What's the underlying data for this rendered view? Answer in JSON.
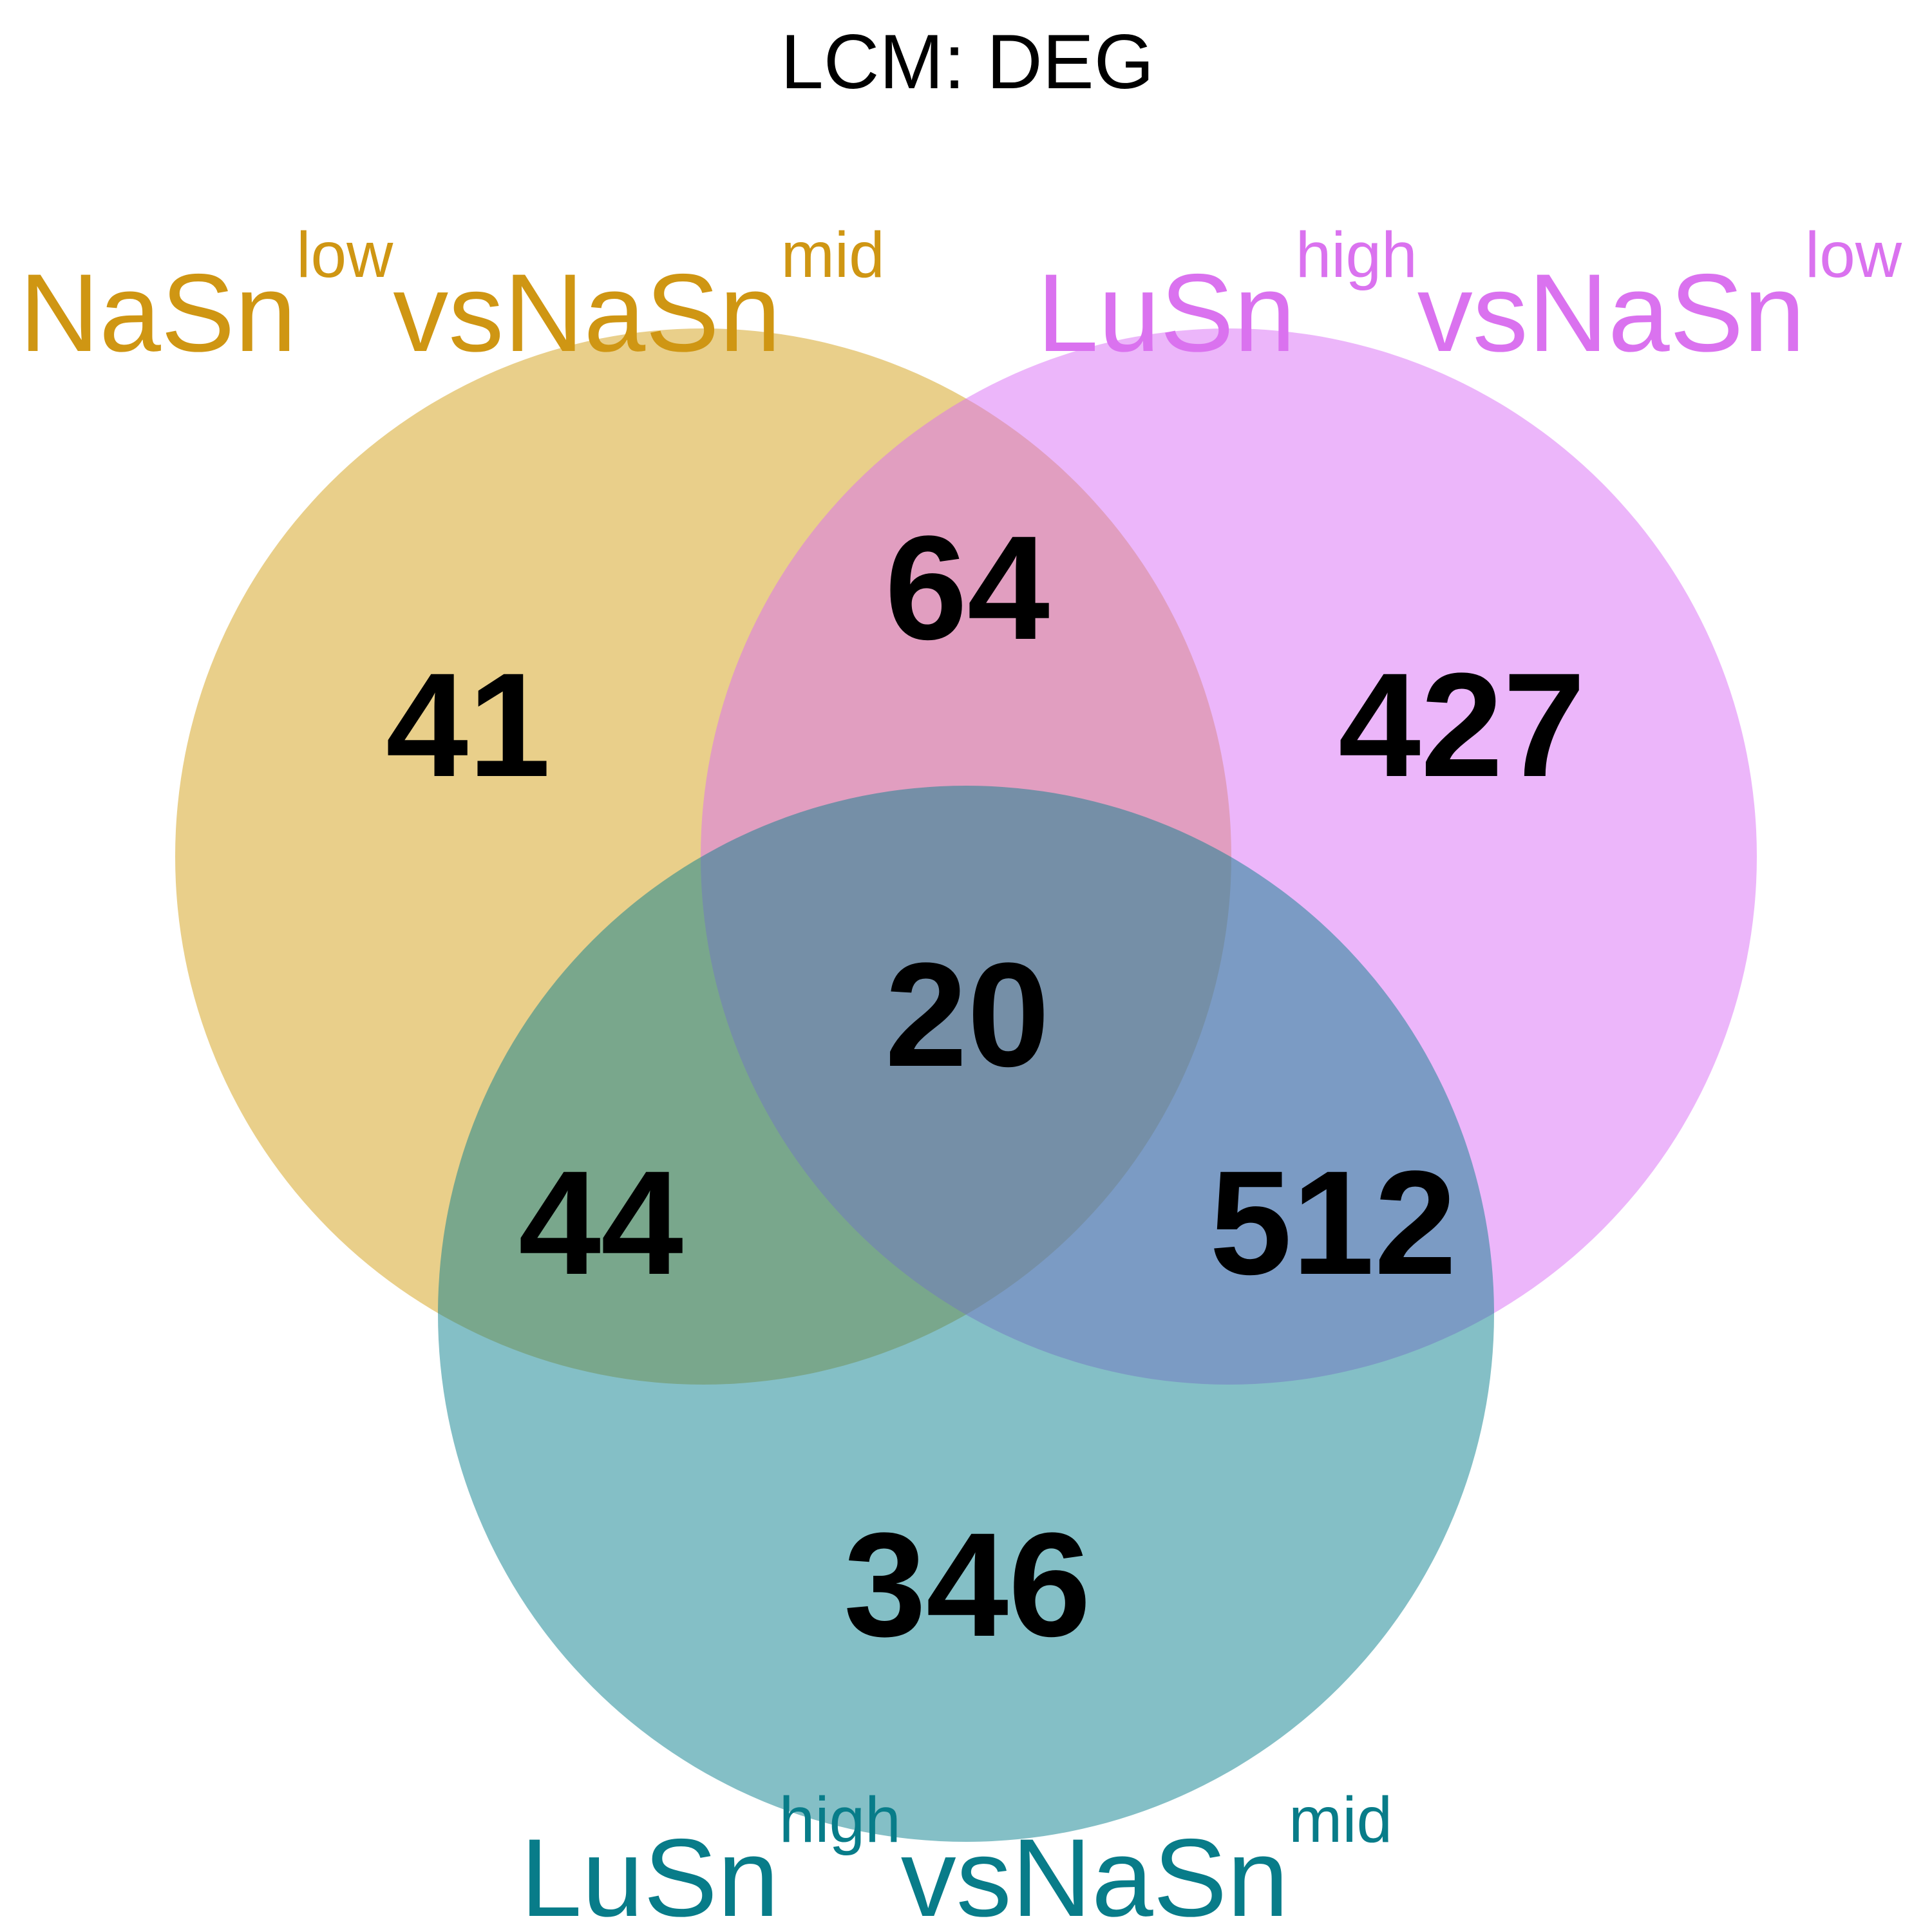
{
  "title": "LCM: DEG",
  "sets": {
    "A": {
      "label": {
        "main1": "NaSn",
        "sup1": "low",
        "main2": "vsNaSn",
        "sup2": "mid"
      },
      "fill": "#D4A015",
      "label_color": "#CF9613"
    },
    "B": {
      "label": {
        "main1": "LuSn",
        "sup1": "high",
        "main2": "vsNaSn",
        "sup2": "low"
      },
      "fill": "#DA6EF5",
      "label_color": "#DA72EF"
    },
    "C": {
      "label": {
        "main1": "LuSn",
        "sup1": "high",
        "main2": "vsNaSn",
        "sup2": "mid"
      },
      "fill": "#097F8E",
      "label_color": "#087C89"
    }
  },
  "counts": {
    "A_only": "41",
    "B_only": "427",
    "C_only": "346",
    "A_B": "64",
    "A_C": "44",
    "B_C": "512",
    "A_B_C": "20"
  }
}
